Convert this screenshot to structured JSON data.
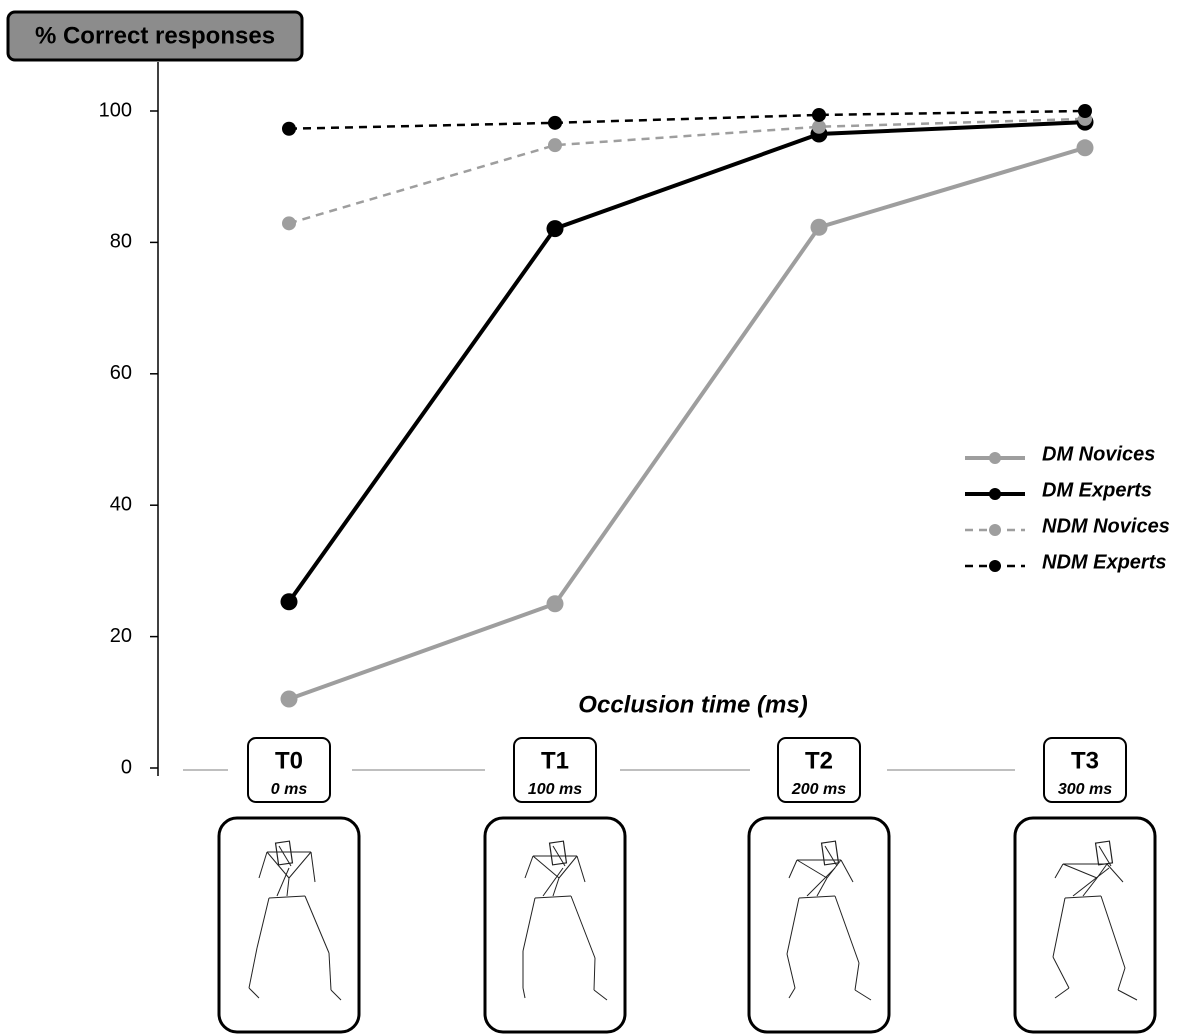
{
  "chart_data": {
    "type": "line",
    "y_label": "% Correct responses",
    "x_label": "Occlusion time (ms)",
    "categories": [
      "T0",
      "T1",
      "T2",
      "T3"
    ],
    "category_sublabels": [
      "0 ms",
      "100 ms",
      "200 ms",
      "300 ms"
    ],
    "ylim": [
      0,
      100
    ],
    "yticks": [
      0,
      20,
      40,
      60,
      80,
      100
    ],
    "legend": "right",
    "series": [
      {
        "name": "DM Novices",
        "color": "#9e9e9e",
        "dashed": false,
        "values": [
          10.5,
          25,
          82.3,
          94.4
        ]
      },
      {
        "name": "DM Experts",
        "color": "#000000",
        "dashed": false,
        "values": [
          25.3,
          82.1,
          96.5,
          98.3
        ]
      },
      {
        "name": "NDM Novices",
        "color": "#9e9e9e",
        "dashed": true,
        "values": [
          82.9,
          94.8,
          97.6,
          98.8
        ]
      },
      {
        "name": "NDM Experts",
        "color": "#000000",
        "dashed": true,
        "values": [
          97.3,
          98.2,
          99.4,
          100
        ]
      }
    ]
  }
}
